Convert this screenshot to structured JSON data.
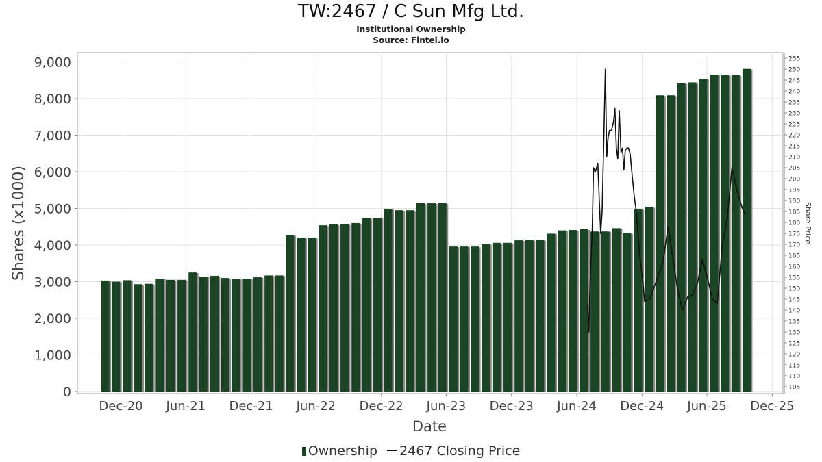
{
  "title": "TW:2467 / C Sun Mfg Ltd.",
  "subtitle": "Institutional Ownership",
  "source": "Source: Fintel.io",
  "colors": {
    "bar": "#1b4424",
    "bar_shadow": "#8a8a8a",
    "line": "#111111",
    "grid": "#e3e3e3",
    "frame": "#999999"
  },
  "chart_data": {
    "type": "bar",
    "xlabel": "Date",
    "ylabel": "Shares (x1000)",
    "y2label": "Share Price",
    "ylim": [
      0,
      9250
    ],
    "y2lim": [
      103.4,
      257
    ],
    "xlim": [
      "2020-08-01",
      "2025-12-31"
    ],
    "grid": true,
    "legend_position": "bottom",
    "x_ticks": [
      "Dec-20",
      "Jun-21",
      "Dec-21",
      "Jun-22",
      "Dec-22",
      "Jun-23",
      "Dec-23",
      "Jun-24",
      "Dec-24",
      "Jun-25",
      "Dec-25"
    ],
    "y_ticks": [
      "0",
      "1,000",
      "2,000",
      "3,000",
      "4,000",
      "5,000",
      "6,000",
      "7,000",
      "8,000",
      "9,000"
    ],
    "y2_ticks": [
      105,
      110,
      115,
      120,
      125,
      130,
      135,
      140,
      145,
      150,
      155,
      160,
      165,
      170,
      175,
      180,
      185,
      190,
      195,
      200,
      205,
      210,
      215,
      220,
      225,
      230,
      235,
      240,
      245,
      250,
      255
    ],
    "series": [
      {
        "name": "Ownership",
        "kind": "bar",
        "x": [
          "2020-10-20",
          "2020-11-19",
          "2020-12-20",
          "2021-01-20",
          "2021-02-19",
          "2021-03-22",
          "2021-04-21",
          "2021-05-22",
          "2021-06-22",
          "2021-07-22",
          "2021-08-22",
          "2021-09-21",
          "2021-10-21",
          "2021-11-21",
          "2021-12-21",
          "2022-01-21",
          "2022-02-20",
          "2022-03-22",
          "2022-04-22",
          "2022-05-22",
          "2022-06-22",
          "2022-07-22",
          "2022-08-22",
          "2022-09-22",
          "2022-10-22",
          "2022-11-22",
          "2022-12-22",
          "2023-01-22",
          "2023-02-21",
          "2023-03-23",
          "2023-04-23",
          "2023-05-23",
          "2023-06-23",
          "2023-07-23",
          "2023-08-22",
          "2023-09-22",
          "2023-10-22",
          "2023-11-22",
          "2023-12-23",
          "2024-01-22",
          "2024-02-21",
          "2024-03-23",
          "2024-04-23",
          "2024-05-23",
          "2024-06-23",
          "2024-07-23",
          "2024-08-22",
          "2024-09-22",
          "2024-10-22",
          "2024-11-22",
          "2024-12-23",
          "2025-01-22",
          "2025-02-21",
          "2025-03-23",
          "2025-04-23",
          "2025-05-23",
          "2025-06-23",
          "2025-07-23",
          "2025-08-22",
          "2025-09-22"
        ],
        "values": [
          3030,
          3000,
          3040,
          2930,
          2940,
          3080,
          3050,
          3050,
          3250,
          3140,
          3160,
          3100,
          3080,
          3080,
          3120,
          3170,
          3170,
          4270,
          4200,
          4200,
          4540,
          4560,
          4570,
          4600,
          4740,
          4740,
          4980,
          4950,
          4950,
          5140,
          5140,
          5140,
          3960,
          3960,
          3960,
          4030,
          4060,
          4060,
          4130,
          4140,
          4140,
          4310,
          4400,
          4410,
          4430,
          4370,
          4370,
          4460,
          4320,
          4980,
          5040,
          8090,
          8090,
          8430,
          8440,
          8540,
          8650,
          8640,
          8640,
          8810
        ]
      },
      {
        "name": "2467 Closing Price",
        "kind": "line",
        "axis": "right",
        "x": [
          "2024-07-01",
          "2024-07-05",
          "2024-07-07",
          "2024-07-10",
          "2024-07-14",
          "2024-07-18",
          "2024-07-23",
          "2024-07-30",
          "2024-08-04",
          "2024-08-07",
          "2024-08-11",
          "2024-08-16",
          "2024-08-20",
          "2024-08-24",
          "2024-08-28",
          "2024-09-01",
          "2024-09-06",
          "2024-09-12",
          "2024-09-16",
          "2024-09-20",
          "2024-09-24",
          "2024-09-28",
          "2024-10-03",
          "2024-10-07",
          "2024-10-11",
          "2024-10-15",
          "2024-10-20",
          "2024-10-24",
          "2024-10-29",
          "2024-11-03",
          "2024-11-09",
          "2024-11-14",
          "2024-11-19",
          "2024-11-24",
          "2024-12-01",
          "2024-12-05",
          "2024-12-08",
          "2024-12-22",
          "2025-01-10",
          "2025-01-29",
          "2025-02-12",
          "2025-02-24",
          "2025-03-10",
          "2025-03-24",
          "2025-04-08",
          "2025-04-22",
          "2025-05-05",
          "2025-05-19",
          "2025-06-02",
          "2025-06-16",
          "2025-06-30",
          "2025-07-14",
          "2025-07-28",
          "2025-08-10",
          "2025-08-24",
          "2025-09-07",
          "2025-09-14"
        ],
        "values": [
          143,
          130,
          145,
          160,
          174,
          205,
          203,
          207,
          187,
          175,
          185,
          220,
          250,
          210,
          219,
          222,
          222,
          226,
          232,
          214,
          209,
          231,
          212,
          214,
          204,
          213,
          214,
          214,
          211,
          202,
          192,
          186,
          176,
          165,
          156,
          150,
          144,
          145,
          153,
          162,
          178,
          165,
          150,
          140,
          146,
          147,
          152,
          163,
          155,
          145,
          143,
          170,
          182,
          205,
          195,
          187,
          184
        ]
      }
    ]
  }
}
